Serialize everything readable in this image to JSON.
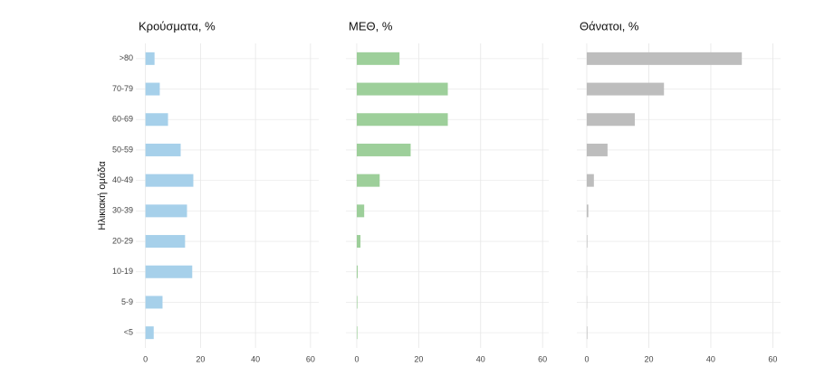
{
  "chart_data": [
    {
      "type": "bar",
      "orientation": "horizontal",
      "title": "Κρούσματα, %",
      "y_label": "Ηλικιακή ομάδα",
      "categories": [
        ">80",
        "70-79",
        "60-69",
        "50-59",
        "40-49",
        "30-39",
        "20-29",
        "10-19",
        "5-9",
        "<5"
      ],
      "values": [
        3.3,
        5.2,
        8.2,
        12.8,
        17.4,
        15.1,
        14.4,
        17.0,
        6.2,
        3.0
      ],
      "color": "#a6d0ea",
      "xlim": [
        -3.5,
        63
      ],
      "xticks": [
        0,
        20,
        40,
        60
      ],
      "grid": true
    },
    {
      "type": "bar",
      "orientation": "horizontal",
      "title": "ΜΕΘ, %",
      "values": [
        13.8,
        29.4,
        29.4,
        17.4,
        7.4,
        2.4,
        1.2,
        0.3,
        0.2,
        0.2
      ],
      "color": "#9dcf9a",
      "xlim": [
        -3.5,
        62
      ],
      "xticks": [
        0,
        20,
        40,
        60
      ],
      "grid": true
    },
    {
      "type": "bar",
      "orientation": "horizontal",
      "title": "Θάνατοι, %",
      "values": [
        50,
        24.9,
        15.5,
        6.7,
        2.3,
        0.5,
        0.2,
        0.1,
        0.1,
        0.2
      ],
      "color": "#bdbdbd",
      "xlim": [
        -3.2,
        62.5
      ],
      "xticks": [
        0,
        20,
        40,
        60
      ],
      "grid": true
    }
  ]
}
